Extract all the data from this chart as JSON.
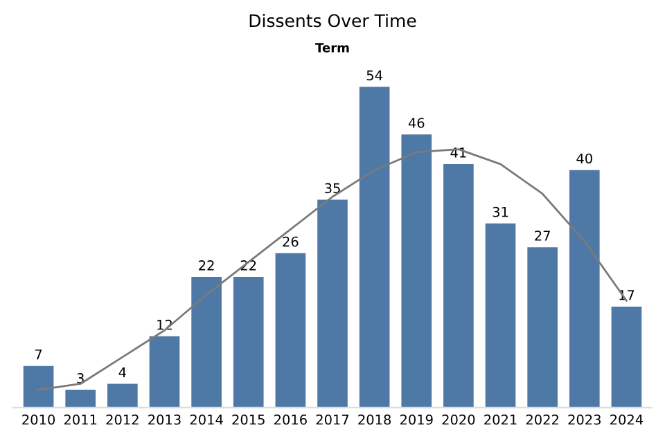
{
  "chart_data": {
    "type": "bar",
    "title": "Dissents Over Time",
    "subtitle": "Term",
    "categories": [
      "2010",
      "2011",
      "2012",
      "2013",
      "2014",
      "2015",
      "2016",
      "2017",
      "2018",
      "2019",
      "2020",
      "2021",
      "2022",
      "2023",
      "2024"
    ],
    "series": [
      {
        "color": "#4e79a7",
        "values": [
          7,
          3,
          4,
          12,
          22,
          22,
          26,
          35,
          54,
          46,
          41,
          31,
          27,
          40,
          17
        ],
        "data_labels": true
      },
      {
        "type": "line",
        "color": "#7a7a7a",
        "values": [
          3,
          4,
          8.5,
          13,
          19,
          24.5,
          30,
          35.5,
          40,
          43,
          43.5,
          41,
          36,
          28,
          18
        ]
      }
    ],
    "tick_labels": "x",
    "legend": false
  }
}
